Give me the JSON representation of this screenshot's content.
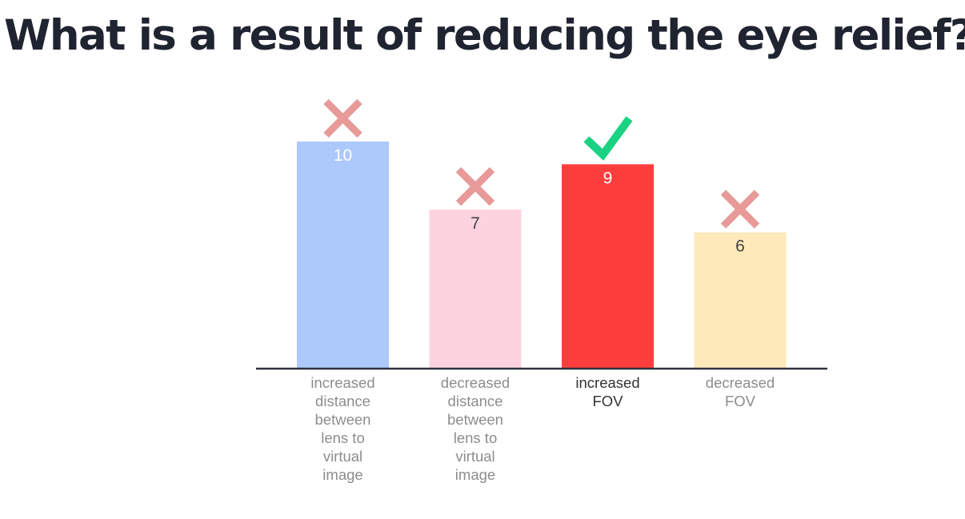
{
  "title": "What is a result of reducing the eye relief?",
  "chart_data": {
    "type": "bar",
    "categories": [
      "increased distance between lens to virtual image",
      "decreased distance between lens to virtual image",
      "increased FOV",
      "decreased FOV"
    ],
    "category_lines": [
      [
        "increased",
        "distance",
        "between",
        "lens to",
        "virtual",
        "image"
      ],
      [
        "decreased",
        "distance",
        "between",
        "lens to",
        "virtual",
        "image"
      ],
      [
        "increased",
        "FOV"
      ],
      [
        "decreased",
        "FOV"
      ]
    ],
    "values": [
      10,
      7,
      9,
      6
    ],
    "correct": [
      false,
      false,
      true,
      false
    ],
    "colors": [
      "#adc8fa",
      "#fdd3e0",
      "#fd3e3d",
      "#fde9b9"
    ],
    "value_label_colors": [
      "#ffffff",
      "#444444",
      "#ffffff",
      "#444444"
    ],
    "category_label_colors": [
      "#8d8d8d",
      "#8d8d8d",
      "#333333",
      "#8d8d8d"
    ],
    "mark_colors": {
      "correct": "#1bd283",
      "incorrect": "#e79a98"
    },
    "icons": {
      "correct": "check-icon",
      "incorrect": "cross-icon"
    },
    "axis_color": "#2f3340",
    "ylim": [
      0,
      10
    ],
    "grid": false,
    "legend": "none"
  }
}
